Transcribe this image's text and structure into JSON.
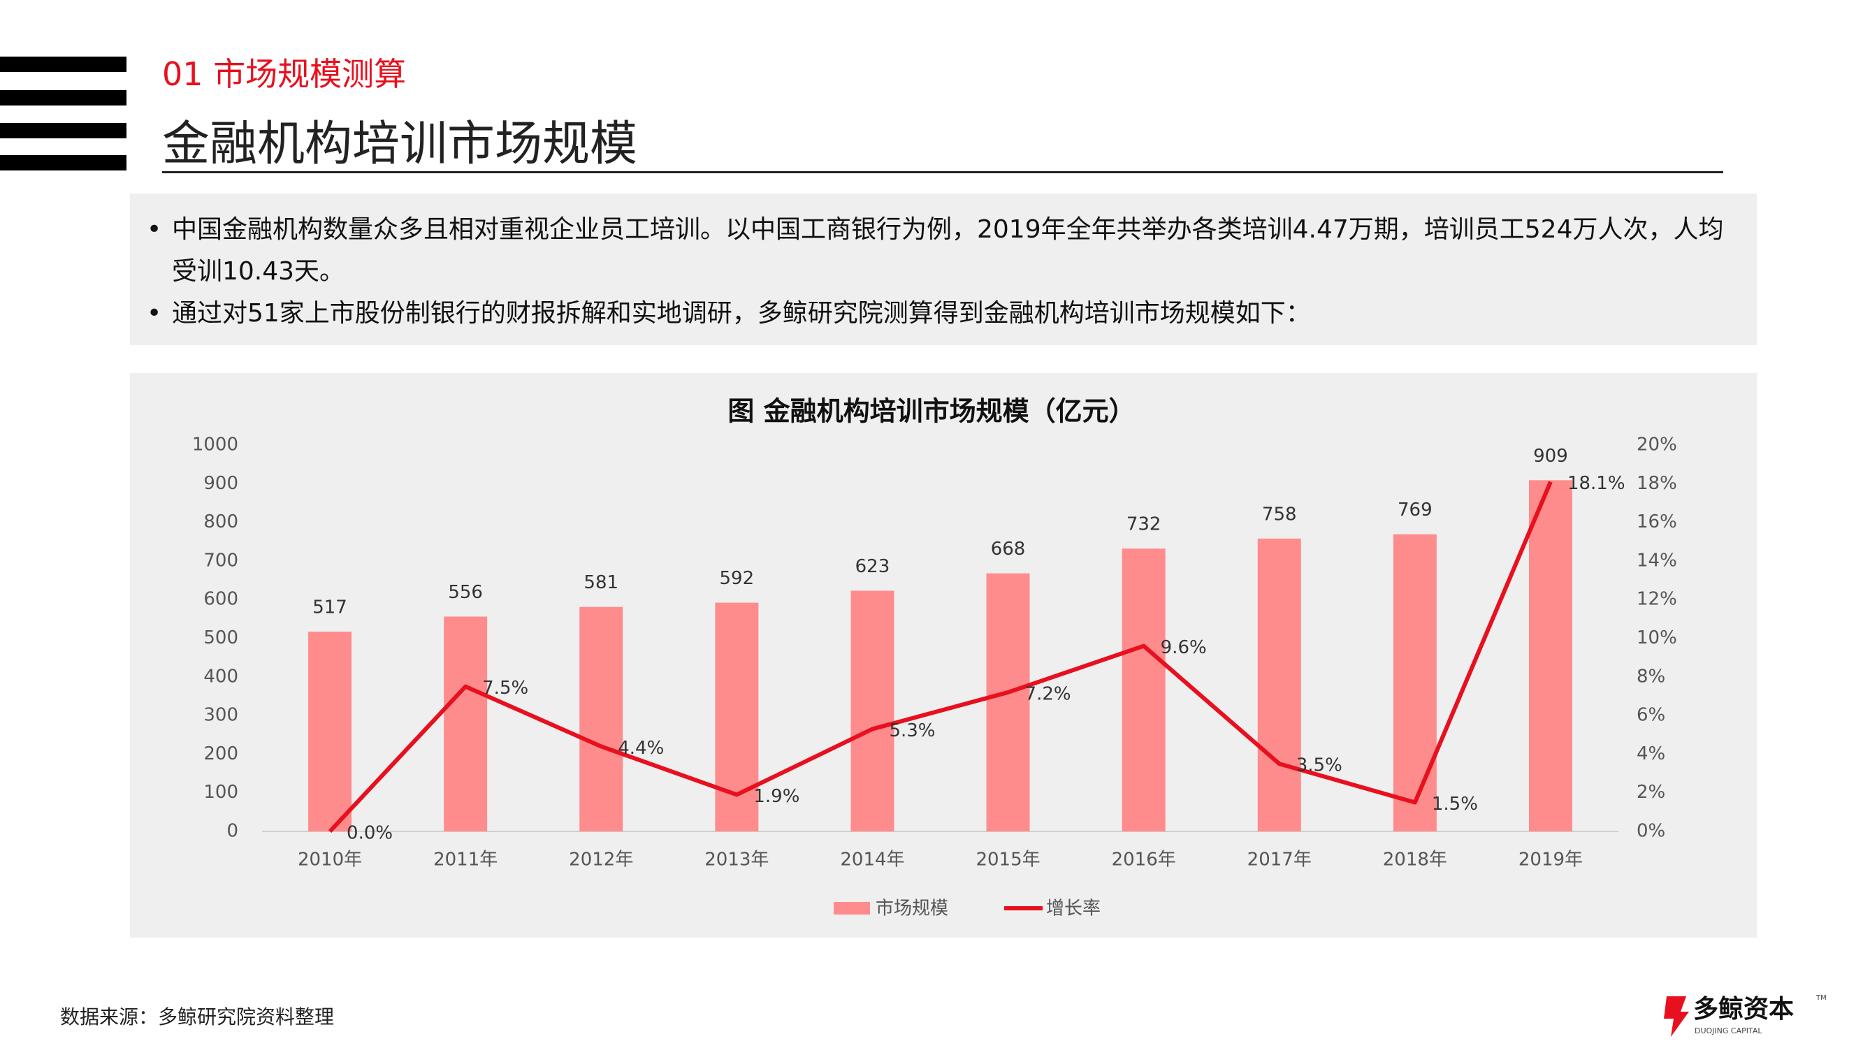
{
  "header": {
    "section": "01 市场规模测算",
    "title": "金融机构培训市场规模"
  },
  "bullets": [
    "中国金融机构数量众多且相对重视企业员工培训。以中国工商银行为例，2019年全年共举办各类培训4.47万期，培训员工524万人次，人均受训10.43天。",
    "通过对51家上市股份制银行的财报拆解和实地调研，多鲸研究院测算得到金融机构培训市场规模如下："
  ],
  "chart_data": {
    "type": "combo",
    "title": "图 金融机构培训市场规模（亿元）",
    "categories": [
      "2010年",
      "2011年",
      "2012年",
      "2013年",
      "2014年",
      "2015年",
      "2016年",
      "2017年",
      "2018年",
      "2019年"
    ],
    "series": [
      {
        "name": "市场规模",
        "type": "bar",
        "color": "#ff8c8c",
        "values": [
          517,
          556,
          581,
          592,
          623,
          668,
          732,
          758,
          769,
          909
        ]
      },
      {
        "name": "增长率",
        "type": "line",
        "color": "#e8101e",
        "axis": "y2",
        "values": [
          0,
          7.5,
          4.4,
          1.9,
          5.3,
          7.2,
          9.6,
          3.5,
          1.5,
          18.1
        ],
        "value_labels": [
          "0.0%",
          "7.5%",
          "4.4%",
          "1.9%",
          "5.3%",
          "7.2%",
          "9.6%",
          "3.5%",
          "1.5%",
          "18.1%"
        ]
      }
    ],
    "ylim": [
      0,
      1000
    ],
    "yticks": [
      0,
      100,
      200,
      300,
      400,
      500,
      600,
      700,
      800,
      900,
      1000
    ],
    "y2lim": [
      0,
      20
    ],
    "y2ticks": [
      {
        "value": 0,
        "label": "0%"
      },
      {
        "value": 2,
        "label": "2%"
      },
      {
        "value": 4,
        "label": "4%"
      },
      {
        "value": 6,
        "label": "6%"
      },
      {
        "value": 8,
        "label": "8%"
      },
      {
        "value": 10,
        "label": "10%"
      },
      {
        "value": 12,
        "label": "12%"
      },
      {
        "value": 14,
        "label": "14%"
      },
      {
        "value": 16,
        "label": "16%"
      },
      {
        "value": 18,
        "label": "18%"
      },
      {
        "value": 20,
        "label": "20%"
      }
    ],
    "grid": false,
    "legend": "bottom"
  },
  "footer": {
    "source": "数据来源：多鲸研究院资料整理",
    "logo": "多鲸资本",
    "logo_sub": "DUOJING CAPITAL",
    "logo_tm": "TM"
  }
}
